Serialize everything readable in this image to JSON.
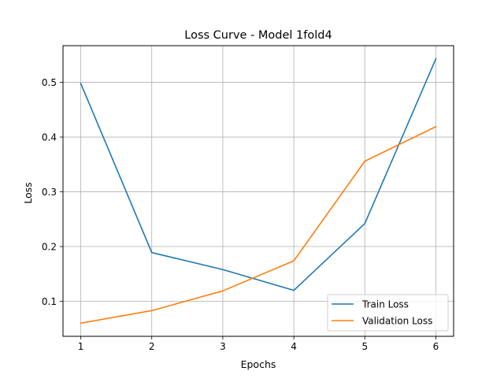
{
  "chart_data": {
    "type": "line",
    "title": "Loss Curve - Model 1fold4",
    "xlabel": "Epochs",
    "ylabel": "Loss",
    "x": [
      1,
      2,
      3,
      4,
      5,
      6
    ],
    "xticks": [
      "1",
      "2",
      "3",
      "4",
      "5",
      "6"
    ],
    "yticks": [
      "0.1",
      "0.2",
      "0.3",
      "0.4",
      "0.5"
    ],
    "xlim": [
      0.75,
      6.25
    ],
    "ylim": [
      0.036,
      0.567
    ],
    "grid": true,
    "legend_position": "lower-right",
    "series": [
      {
        "name": "Train Loss",
        "color": "#1f77b4",
        "values": [
          0.498,
          0.189,
          0.158,
          0.12,
          0.242,
          0.543
        ]
      },
      {
        "name": "Validation Loss",
        "color": "#ff7f0e",
        "values": [
          0.06,
          0.083,
          0.119,
          0.174,
          0.356,
          0.419
        ]
      }
    ]
  }
}
